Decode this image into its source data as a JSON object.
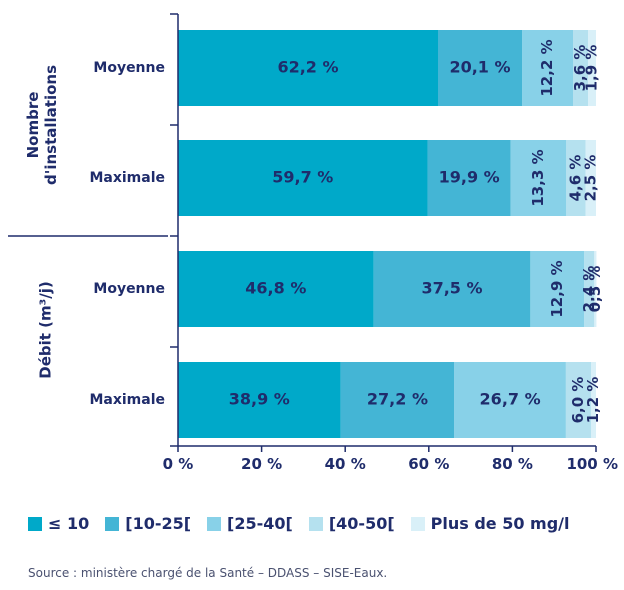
{
  "chart_data": {
    "type": "bar",
    "orientation": "horizontal",
    "stacked": true,
    "groups": [
      {
        "label": "Nombre d'installations",
        "categories": [
          "Moyenne",
          "Maximale"
        ]
      },
      {
        "label": "Débit (m³/j)",
        "categories": [
          "Moyenne",
          "Maximale"
        ]
      }
    ],
    "series": [
      {
        "name": "≤ 10",
        "color": "#00a9c9",
        "values": [
          62.2,
          59.7,
          46.8,
          38.9
        ]
      },
      {
        "name": "[10-25[",
        "color": "#44b5d5",
        "values": [
          20.1,
          19.9,
          37.5,
          27.2
        ]
      },
      {
        "name": "[25-40[",
        "color": "#88d1e8",
        "values": [
          12.2,
          13.3,
          12.9,
          26.7
        ]
      },
      {
        "name": "[40-50[",
        "color": "#b5e1ef",
        "values": [
          3.6,
          4.6,
          2.4,
          6.0
        ]
      },
      {
        "name": "Plus de 50 mg/l",
        "color": "#d9f0f8",
        "values": [
          1.9,
          2.5,
          0.5,
          1.2
        ]
      }
    ],
    "value_labels": [
      [
        "62,2 %",
        "59,7 %",
        "46,8 %",
        "38,9 %"
      ],
      [
        "20,1 %",
        "19,9 %",
        "37,5 %",
        "27,2 %"
      ],
      [
        "12,2 %",
        "13,3 %",
        "12,9 %",
        "26,7 %"
      ],
      [
        "3,6 %",
        "4,6 %",
        "2,4 %",
        "6,0 %"
      ],
      [
        "1,9 %",
        "2,5 %",
        "0,5 %",
        "1,2 %"
      ]
    ],
    "xlim": [
      0,
      100
    ],
    "xticks": [
      "0 %",
      "20 %",
      "40 %",
      "60 %",
      "80 %",
      "100 %"
    ],
    "legend_position": "bottom"
  },
  "source": "Source : ministère chargé de la Santé – DDASS – SISE-Eaux."
}
